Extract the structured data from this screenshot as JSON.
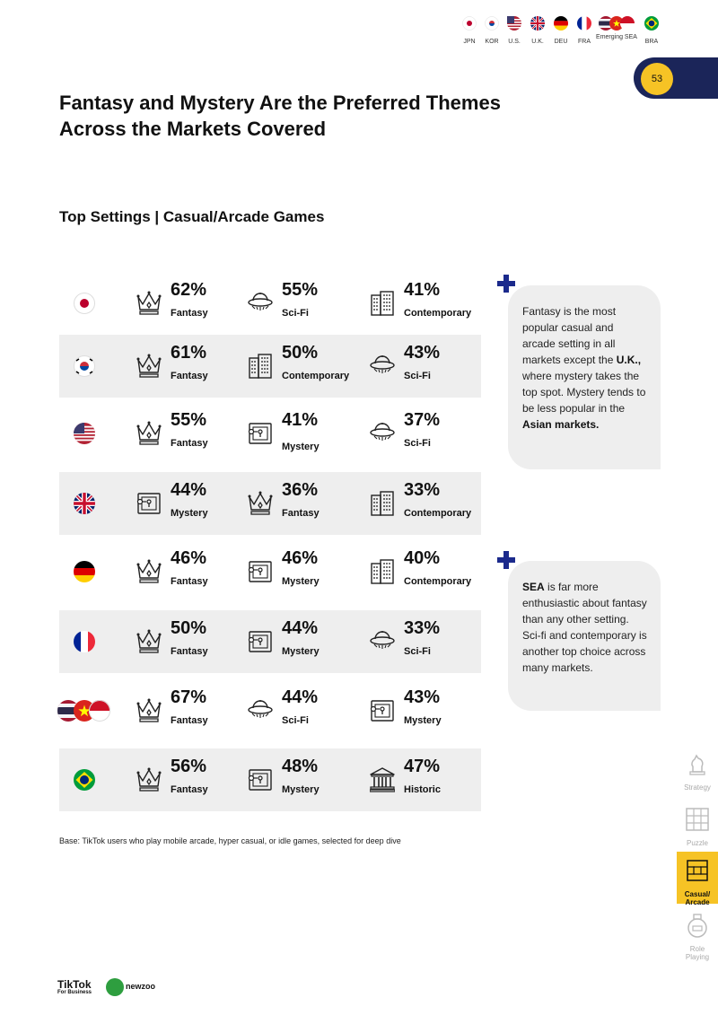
{
  "nav_flags": [
    {
      "code": "JPN"
    },
    {
      "code": "KOR"
    },
    {
      "code": "U.S."
    },
    {
      "code": "U.K."
    },
    {
      "code": "DEU"
    },
    {
      "code": "FRA"
    },
    {
      "code": "Emerging SEA"
    },
    {
      "code": "BRA"
    }
  ],
  "page_number": "53",
  "title_line1": "Fantasy and Mystery Are the Preferred Themes",
  "title_line2": "Across the Markets Covered",
  "section_title": "Top Settings | Casual/Arcade Games",
  "rows": [
    {
      "market": "JPN",
      "shaded": false,
      "cells": [
        {
          "pct": "62%",
          "label": "Fantasy",
          "icon": "crown-icon"
        },
        {
          "pct": "55%",
          "label": "Sci-Fi",
          "icon": "ufo-icon"
        },
        {
          "pct": "41%",
          "label": "Contemporary",
          "icon": "building-icon"
        }
      ]
    },
    {
      "market": "KOR",
      "shaded": true,
      "cells": [
        {
          "pct": "61%",
          "label": "Fantasy",
          "icon": "crown-icon"
        },
        {
          "pct": "50%",
          "label": "Contemporary",
          "icon": "building-icon"
        },
        {
          "pct": "43%",
          "label": "Sci-Fi",
          "icon": "ufo-icon"
        }
      ]
    },
    {
      "market": "U.S.",
      "shaded": false,
      "cells": [
        {
          "pct": "55%",
          "label": "Fantasy",
          "icon": "crown-icon"
        },
        {
          "pct": "41%",
          "label": "Mystery",
          "icon": "safe-key-icon"
        },
        {
          "pct": "37%",
          "label": "Sci-Fi",
          "icon": "ufo-icon"
        }
      ]
    },
    {
      "market": "U.K.",
      "shaded": true,
      "cells": [
        {
          "pct": "44%",
          "label": "Mystery",
          "icon": "safe-key-icon"
        },
        {
          "pct": "36%",
          "label": "Fantasy",
          "icon": "crown-icon"
        },
        {
          "pct": "33%",
          "label": "Contemporary",
          "icon": "building-icon"
        }
      ]
    },
    {
      "market": "DEU",
      "shaded": false,
      "cells": [
        {
          "pct": "46%",
          "label": "Fantasy",
          "icon": "crown-icon"
        },
        {
          "pct": "46%",
          "label": "Mystery",
          "icon": "safe-key-icon"
        },
        {
          "pct": "40%",
          "label": "Contemporary",
          "icon": "building-icon"
        }
      ]
    },
    {
      "market": "FRA",
      "shaded": true,
      "cells": [
        {
          "pct": "50%",
          "label": "Fantasy",
          "icon": "crown-icon"
        },
        {
          "pct": "44%",
          "label": "Mystery",
          "icon": "safe-key-icon"
        },
        {
          "pct": "33%",
          "label": "Sci-Fi",
          "icon": "ufo-icon"
        }
      ]
    },
    {
      "market": "Emerging SEA",
      "shaded": false,
      "cells": [
        {
          "pct": "67%",
          "label": "Fantasy",
          "icon": "crown-icon"
        },
        {
          "pct": "44%",
          "label": "Sci-Fi",
          "icon": "ufo-icon"
        },
        {
          "pct": "43%",
          "label": "Mystery",
          "icon": "safe-key-icon"
        }
      ]
    },
    {
      "market": "BRA",
      "shaded": true,
      "cells": [
        {
          "pct": "56%",
          "label": "Fantasy",
          "icon": "crown-icon"
        },
        {
          "pct": "48%",
          "label": "Mystery",
          "icon": "safe-key-icon"
        },
        {
          "pct": "47%",
          "label": "Historic",
          "icon": "museum-icon"
        }
      ]
    }
  ],
  "callout1": {
    "t1": "Fantasy is the most popular casual and arcade setting in all markets except the ",
    "b1": "U.K.,",
    "t2": " where mystery takes the top spot. Mystery tends to be less popular in the ",
    "b2": "Asian markets."
  },
  "callout2": {
    "b1": "SEA",
    "t1": " is far more enthusiastic about fantasy than any other setting. Sci-fi and contemporary is another top choice across many markets."
  },
  "base_note": "Base: TikTok users who play mobile arcade, hyper casual, or idle games, selected for deep dive",
  "side_nav": [
    {
      "label": "Strategy",
      "active": false
    },
    {
      "label": "Puzzle",
      "active": false
    },
    {
      "label": "Casual/\nArcade",
      "active": true
    },
    {
      "label": "Role\nPlaying",
      "active": false
    }
  ],
  "footer": {
    "tiktok_word": "TikTok",
    "tiktok_sub": "For Business",
    "newzoo_word": "newzoo"
  },
  "colors": {
    "navy": "#1b2559",
    "yellow": "#f6c325",
    "row_shade": "#eeeeee",
    "plus": "#1b2a8c"
  }
}
